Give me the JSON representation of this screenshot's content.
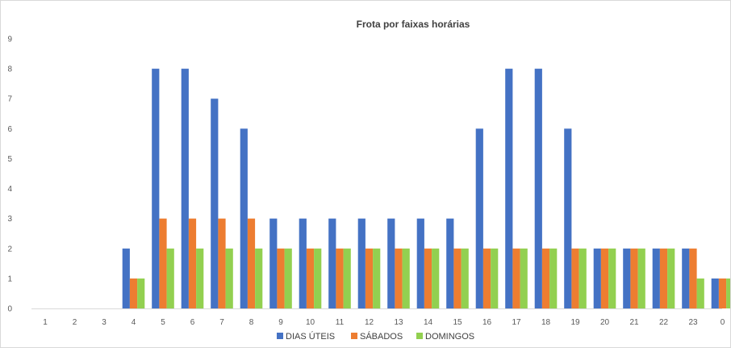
{
  "chart_data": {
    "type": "bar",
    "title": "Frota por faixas horárias",
    "xlabel": "",
    "ylabel": "",
    "categories": [
      "1",
      "2",
      "3",
      "4",
      "5",
      "6",
      "7",
      "8",
      "9",
      "10",
      "11",
      "12",
      "13",
      "14",
      "15",
      "16",
      "17",
      "18",
      "19",
      "20",
      "21",
      "22",
      "23",
      "0"
    ],
    "series": [
      {
        "name": "DIAS ÚTEIS",
        "color": "#4472C4",
        "values": [
          0,
          0,
          0,
          2,
          8,
          8,
          7,
          6,
          3,
          3,
          3,
          3,
          3,
          3,
          3,
          6,
          8,
          8,
          6,
          2,
          2,
          2,
          2,
          1
        ]
      },
      {
        "name": "SÁBADOS",
        "color": "#ED7D31",
        "values": [
          0,
          0,
          0,
          1,
          3,
          3,
          3,
          3,
          2,
          2,
          2,
          2,
          2,
          2,
          2,
          2,
          2,
          2,
          2,
          2,
          2,
          2,
          2,
          1
        ]
      },
      {
        "name": "DOMINGOS",
        "color": "#92D050",
        "values": [
          0,
          0,
          0,
          1,
          2,
          2,
          2,
          2,
          2,
          2,
          2,
          2,
          2,
          2,
          2,
          2,
          2,
          2,
          2,
          2,
          2,
          2,
          1,
          1
        ]
      }
    ],
    "ylim": [
      0,
      9
    ],
    "yticks": [
      0,
      1,
      2,
      3,
      4,
      5,
      6,
      7,
      8,
      9
    ],
    "grid": false,
    "legend_position": "bottom"
  }
}
